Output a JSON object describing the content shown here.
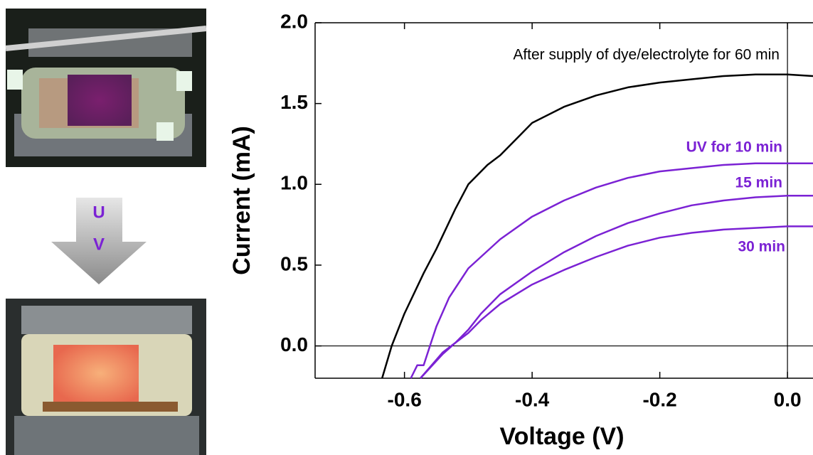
{
  "chart_data": {
    "type": "line",
    "xlabel": "Voltage (V)",
    "ylabel": "Current (mA)",
    "xlim": [
      -0.74,
      0.04
    ],
    "ylim": [
      -0.2,
      2.0
    ],
    "xticks": [
      -0.6,
      -0.4,
      -0.2,
      {
        "value": 0,
        "label": "0.0"
      }
    ],
    "yticks": [
      {
        "value": 0,
        "label": "0.0"
      },
      0.5,
      {
        "value": 1,
        "label": "1.0"
      },
      1.5,
      {
        "value": 2,
        "label": "2.0"
      }
    ],
    "grid": false,
    "series": [
      {
        "name": "After supply of dye/electrolyte for 60 min",
        "color": "#000000",
        "x": [
          -0.635,
          -0.62,
          -0.6,
          -0.57,
          -0.55,
          -0.52,
          -0.5,
          -0.47,
          -0.45,
          -0.42,
          -0.4,
          -0.35,
          -0.3,
          -0.25,
          -0.2,
          -0.15,
          -0.1,
          -0.05,
          0,
          0.04
        ],
        "values": [
          -0.2,
          0,
          0.2,
          0.45,
          0.6,
          0.85,
          1.0,
          1.12,
          1.18,
          1.3,
          1.38,
          1.48,
          1.55,
          1.6,
          1.63,
          1.65,
          1.67,
          1.68,
          1.68,
          1.67
        ]
      },
      {
        "name": "UV for 10 min",
        "color": "#7b22d4",
        "x": [
          -0.59,
          -0.58,
          -0.57,
          -0.56,
          -0.55,
          -0.53,
          -0.5,
          -0.45,
          -0.4,
          -0.35,
          -0.3,
          -0.25,
          -0.2,
          -0.15,
          -0.1,
          -0.05,
          0,
          0.04
        ],
        "values": [
          -0.2,
          -0.12,
          -0.12,
          0,
          0.12,
          0.3,
          0.48,
          0.66,
          0.8,
          0.9,
          0.98,
          1.04,
          1.08,
          1.1,
          1.12,
          1.13,
          1.13,
          1.13
        ]
      },
      {
        "name": "15 min",
        "color": "#7b22d4",
        "x": [
          -0.575,
          -0.54,
          -0.52,
          -0.5,
          -0.48,
          -0.45,
          -0.4,
          -0.35,
          -0.3,
          -0.25,
          -0.2,
          -0.15,
          -0.1,
          -0.05,
          0,
          0.04
        ],
        "values": [
          -0.2,
          -0.04,
          0.02,
          0.1,
          0.2,
          0.32,
          0.46,
          0.58,
          0.68,
          0.76,
          0.82,
          0.87,
          0.9,
          0.92,
          0.93,
          0.93
        ]
      },
      {
        "name": "30 min",
        "color": "#7b22d4",
        "x": [
          -0.575,
          -0.54,
          -0.52,
          -0.5,
          -0.48,
          -0.45,
          -0.4,
          -0.35,
          -0.3,
          -0.25,
          -0.2,
          -0.15,
          -0.1,
          -0.05,
          0,
          0.04
        ],
        "values": [
          -0.2,
          -0.05,
          0.02,
          0.08,
          0.16,
          0.26,
          0.38,
          0.47,
          0.55,
          0.62,
          0.67,
          0.7,
          0.72,
          0.73,
          0.74,
          0.74
        ]
      }
    ]
  },
  "figure": {
    "arrow_label": [
      "U",
      "V"
    ]
  }
}
